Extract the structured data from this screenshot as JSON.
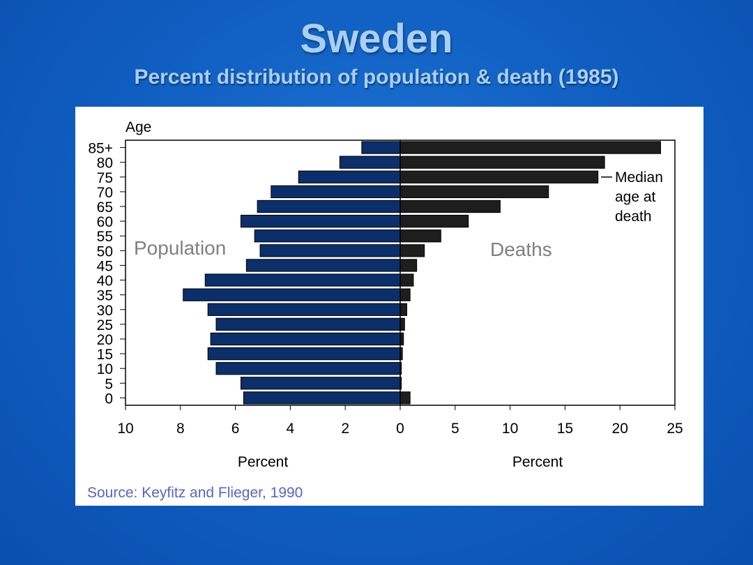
{
  "slide": {
    "title": "Sweden",
    "subtitle": "Percent distribution of population & death (1985)"
  },
  "colors": {
    "population_bar": "#0b2f6b",
    "death_bar": "#1e1e1e",
    "label_gray": "#808080",
    "source_color": "#5a63c9"
  },
  "chart_data": {
    "type": "bar",
    "orientation": "horizontal",
    "subtype": "population-pyramid",
    "ylabel": "Age",
    "categories": [
      "0",
      "5",
      "10",
      "15",
      "20",
      "25",
      "30",
      "35",
      "40",
      "45",
      "50",
      "55",
      "60",
      "65",
      "70",
      "75",
      "80",
      "85+"
    ],
    "series": [
      {
        "name": "Population",
        "side": "left",
        "values": [
          5.7,
          5.8,
          6.7,
          7.0,
          6.9,
          6.7,
          7.0,
          7.9,
          7.1,
          5.6,
          5.1,
          5.3,
          5.8,
          5.2,
          4.7,
          3.7,
          2.2,
          1.4
        ]
      },
      {
        "name": "Deaths",
        "side": "right",
        "values": [
          0.9,
          0.1,
          0.1,
          0.2,
          0.3,
          0.4,
          0.6,
          0.9,
          1.2,
          1.5,
          2.2,
          3.7,
          6.2,
          9.1,
          13.5,
          18.0,
          18.6,
          23.7
        ]
      }
    ],
    "left_axis": {
      "label": "Percent",
      "range": [
        10,
        0
      ],
      "ticks": [
        "10",
        "8",
        "6",
        "4",
        "2",
        "0"
      ]
    },
    "right_axis": {
      "label": "Percent",
      "range": [
        0,
        25
      ],
      "ticks": [
        "0",
        "5",
        "10",
        "15",
        "20",
        "25"
      ]
    },
    "annotations": {
      "population_label": "Population",
      "deaths_label": "Deaths",
      "median_line1": "Median",
      "median_line2": "age at",
      "median_line3": "death",
      "median_age_category": "75"
    },
    "source": "Source: Keyfitz and Flieger, 1990"
  }
}
